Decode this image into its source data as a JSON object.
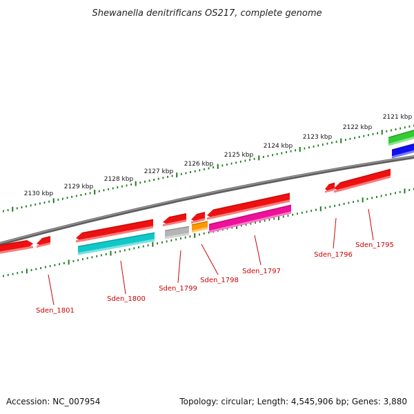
{
  "title": "Shewanella denitrificans OS217, complete genome",
  "scale_labels": [
    "2121 kbp",
    "2122 kbp",
    "2123 kbp",
    "2124 kbp",
    "2125 kbp",
    "2126 kbp",
    "2127 kbp",
    "2128 kbp",
    "2129 kbp",
    "2130 kbp"
  ],
  "gene_labels": [
    "Sden_1795",
    "Sden_1796",
    "Sden_1797",
    "Sden_1798",
    "Sden_1799",
    "Sden_1800",
    "Sden_1801"
  ],
  "colors": {
    "scale": "#1e7a1e",
    "backbone": "#777777",
    "label": "#cc0000",
    "red": "#ee1111",
    "cyan": "#11c8c8",
    "magenta": "#ee1199",
    "orange": "#ff9900",
    "gray": "#b5b5b5",
    "green": "#33cc33",
    "blue": "#1111ee"
  },
  "footer": {
    "accession": "Accession: NC_007954",
    "summary": "Topology: circular; Length: 4,545,906 bp; Genes: 3,880"
  }
}
